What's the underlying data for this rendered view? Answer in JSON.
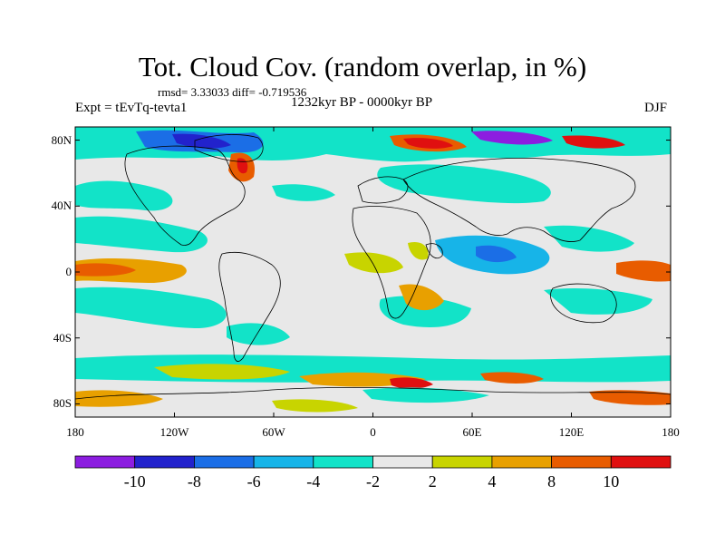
{
  "title": "Tot. Cloud Cov. (random overlap, in %)",
  "stats_line": "rmsd= 3.33033 diff= -0.719536",
  "experiment": "Expt = tEvTq-tevta1",
  "period": "1232kyr BP - 0000kyr BP",
  "season": "DJF",
  "lat_ticks": [
    {
      "label": "80N",
      "lat": 80
    },
    {
      "label": "40N",
      "lat": 40
    },
    {
      "label": "0",
      "lat": 0
    },
    {
      "label": "40S",
      "lat": -40
    },
    {
      "label": "80S",
      "lat": -80
    }
  ],
  "lon_ticks": [
    {
      "label": "180",
      "lon": -180
    },
    {
      "label": "120W",
      "lon": -120
    },
    {
      "label": "60W",
      "lon": -60
    },
    {
      "label": "0",
      "lon": 0
    },
    {
      "label": "60E",
      "lon": 60
    },
    {
      "label": "120E",
      "lon": 120
    },
    {
      "label": "180",
      "lon": 180
    }
  ],
  "colorbar": {
    "labels": [
      "-10",
      "-8",
      "-6",
      "-4",
      "-2",
      "2",
      "4",
      "8",
      "10"
    ],
    "colors": [
      "#8c1de0",
      "#2222cc",
      "#1b6ee6",
      "#17b4e8",
      "#12e3c8",
      "#e8e8e8",
      "#c8d400",
      "#e8a000",
      "#e85c00",
      "#e01010"
    ]
  },
  "colors": {
    "land_outline": "#000000",
    "neutral": "#e8e8e8"
  }
}
